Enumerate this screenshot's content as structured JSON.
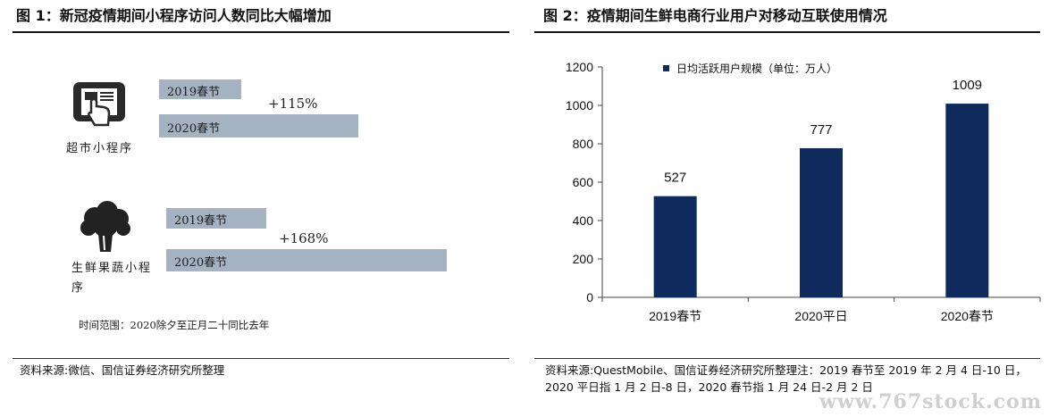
{
  "left": {
    "title": "图 1：新冠疫情期间小程序访问人数同比大幅增加",
    "groups": [
      {
        "label": "超市小程序",
        "icon": "tablet-touch-icon",
        "bars": [
          {
            "label": "2019春节",
            "value": 100
          },
          {
            "label": "2020春节",
            "value": 215
          }
        ],
        "change": "+115%"
      },
      {
        "label": "生鲜果蔬小程序",
        "icon": "broccoli-icon",
        "bars": [
          {
            "label": "2019春节",
            "value": 100
          },
          {
            "label": "2020春节",
            "value": 268
          }
        ],
        "change": "+168%"
      }
    ],
    "note": "时间范围：2020除夕至正月二十同比去年",
    "source": "资料来源:微信、国信证券经济研究所整理"
  },
  "right": {
    "title": "图 2：疫情期间生鲜电商行业用户对移动互联使用情况",
    "source": "资料来源:QuestMobile、国信证券经济研究所整理注：2019 春节至 2019 年 2 月 4 日-10 日，2020 平日指 1 月 2 日-8 日，2020 春节指 1 月 24 日-2 月 2 日"
  },
  "chart_data": {
    "type": "bar",
    "categories": [
      "2019春节",
      "2020平日",
      "2020春节"
    ],
    "series": [
      {
        "name": "日均活跃用户规模（单位：万人）",
        "values": [
          527,
          777,
          1009
        ],
        "color": "#0f2a5c"
      }
    ],
    "yticks": [
      0,
      200,
      400,
      600,
      800,
      1000,
      1200
    ],
    "ylim": [
      0,
      1200
    ],
    "legend_position": "top",
    "data_labels": [
      "527",
      "777",
      "1009"
    ]
  },
  "watermark": "www.767stock.com"
}
